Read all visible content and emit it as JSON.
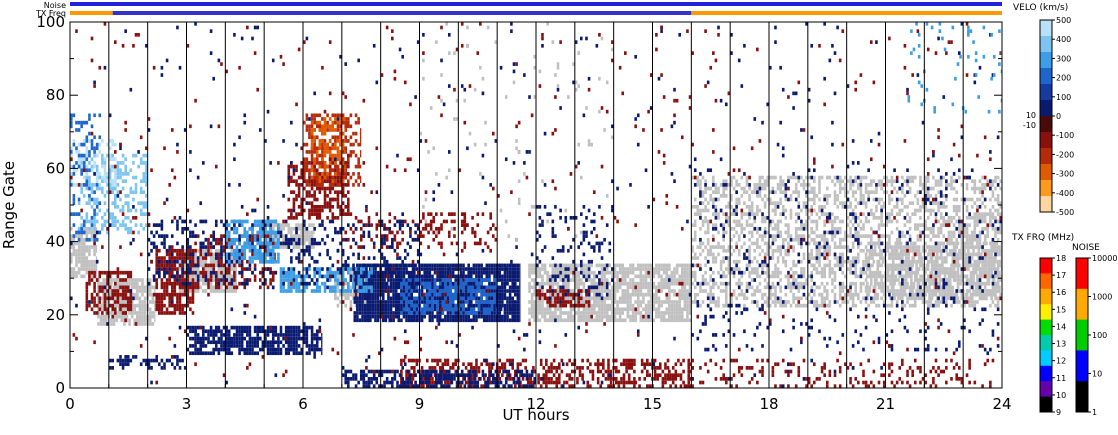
{
  "chart_data": {
    "type": "heatmap",
    "title": "",
    "xlabel": "UT hours",
    "ylabel": "Range Gate",
    "xlim": [
      0,
      24
    ],
    "ylim": [
      0,
      100
    ],
    "x_ticks": [
      0,
      3,
      6,
      9,
      12,
      15,
      18,
      21,
      24
    ],
    "y_ticks": [
      0,
      20,
      40,
      60,
      80,
      100
    ],
    "grid_vertical_hours": [
      1,
      2,
      3,
      4,
      5,
      6,
      7,
      8,
      9,
      10,
      11,
      12,
      13,
      14,
      15,
      16,
      17,
      18,
      19,
      20,
      21,
      22,
      23
    ],
    "status_bars": {
      "noise_label": "Noise",
      "txfreq_label": "TX Freq",
      "noise_color": "#2222dd",
      "txfreq_segments": [
        {
          "start": 0,
          "end": 1.1,
          "color": "#ff9900"
        },
        {
          "start": 1.1,
          "end": 16.0,
          "color": "#3333cc"
        },
        {
          "start": 16.0,
          "end": 24,
          "color": "#ff9900"
        }
      ]
    },
    "velocity_colorbar": {
      "title": "VELO (km/s)",
      "ticks": [
        "500",
        "400",
        "300",
        "200",
        "100",
        "0",
        "-100",
        "-200",
        "-300",
        "-400",
        "-500"
      ],
      "side_labels": [
        "10",
        "-10"
      ],
      "colors": [
        "#b8e0f8",
        "#7ec4f0",
        "#3b9ee6",
        "#1f66cc",
        "#163a9e",
        "#0a1a70",
        "#4a0a0a",
        "#8a1010",
        "#b52a0a",
        "#e05a00",
        "#ff9a20",
        "#ffd6a0"
      ]
    },
    "txfreq_colorbar": {
      "title": "TX FRQ (MHz)",
      "ticks": [
        "18",
        "17",
        "16",
        "15",
        "14",
        "13",
        "12",
        "11",
        "10",
        "9"
      ],
      "colors": [
        "#ff0000",
        "#ff6600",
        "#ffaa00",
        "#ffee00",
        "#00dd00",
        "#00ccaa",
        "#00ccff",
        "#0000ff",
        "#6600aa",
        "#000000"
      ]
    },
    "noise_colorbar": {
      "title": "NOISE",
      "ticks": [
        "10000",
        "1000",
        "100",
        "10",
        "1"
      ],
      "colors": [
        "#ff0000",
        "#ffaa00",
        "#00cc00",
        "#0000ff",
        "#000000"
      ]
    },
    "regions": [
      {
        "name": "ground-scatter",
        "color": "#c0c0c0",
        "hours": [
          0.0,
          0.7
        ],
        "gates": [
          30,
          44
        ],
        "density": 0.75
      },
      {
        "name": "ground-scatter",
        "color": "#c0c0c0",
        "hours": [
          0.7,
          2.2
        ],
        "gates": [
          17,
          30
        ],
        "density": 0.8
      },
      {
        "name": "ground-scatter",
        "color": "#c0c0c0",
        "hours": [
          2.8,
          4.3
        ],
        "gates": [
          26,
          38
        ],
        "density": 0.85
      },
      {
        "name": "ground-scatter",
        "color": "#c0c0c0",
        "hours": [
          5.0,
          6.3
        ],
        "gates": [
          38,
          45
        ],
        "density": 0.7
      },
      {
        "name": "ground-scatter",
        "color": "#c0c0c0",
        "hours": [
          6.8,
          7.8
        ],
        "gates": [
          22,
          32
        ],
        "density": 0.6
      },
      {
        "name": "ground-scatter",
        "color": "#c0c0c0",
        "hours": [
          11.8,
          16.0
        ],
        "gates": [
          18,
          34
        ],
        "density": 0.8
      },
      {
        "name": "ground-scatter",
        "color": "#c0c0c0",
        "hours": [
          16.0,
          24.0
        ],
        "gates": [
          22,
          58
        ],
        "density": 0.45
      },
      {
        "name": "ground-scatter",
        "color": "#c0c0c0",
        "hours": [
          20.5,
          24.0
        ],
        "gates": [
          24,
          40
        ],
        "density": 0.6
      },
      {
        "name": "receding-scatter",
        "color": "#8a1010",
        "hours": [
          0.4,
          1.6
        ],
        "gates": [
          20,
          32
        ],
        "density": 0.55
      },
      {
        "name": "receding-scatter",
        "color": "#8a1010",
        "hours": [
          2.2,
          3.2
        ],
        "gates": [
          20,
          38
        ],
        "density": 0.75
      },
      {
        "name": "receding-scatter",
        "color": "#8a1010",
        "hours": [
          3.2,
          5.3
        ],
        "gates": [
          27,
          42
        ],
        "density": 0.35
      },
      {
        "name": "receding-scatter",
        "color": "#8a1010",
        "hours": [
          5.6,
          7.2
        ],
        "gates": [
          46,
          62
        ],
        "density": 0.55
      },
      {
        "name": "receding-scatter",
        "color": "#b52a0a",
        "hours": [
          6.0,
          7.5
        ],
        "gates": [
          55,
          75
        ],
        "density": 0.45
      },
      {
        "name": "receding-scatter",
        "color": "#e05a00",
        "hours": [
          6.2,
          7.1
        ],
        "gates": [
          56,
          74
        ],
        "density": 0.4
      },
      {
        "name": "receding-scatter",
        "color": "#8a1010",
        "hours": [
          7.0,
          11.0
        ],
        "gates": [
          38,
          48
        ],
        "density": 0.25
      },
      {
        "name": "receding-scatter",
        "color": "#8a1010",
        "hours": [
          12.0,
          13.4
        ],
        "gates": [
          22,
          27
        ],
        "density": 0.5
      },
      {
        "name": "receding-scatter",
        "color": "#8a1010",
        "hours": [
          8.5,
          16.0
        ],
        "gates": [
          0,
          8
        ],
        "density": 0.45
      },
      {
        "name": "receding-scatter",
        "color": "#8a1010",
        "hours": [
          16.0,
          23.8
        ],
        "gates": [
          0,
          8
        ],
        "density": 0.18
      },
      {
        "name": "approaching-scatter",
        "color": "#0a1a70",
        "hours": [
          7.3,
          11.6
        ],
        "gates": [
          18,
          34
        ],
        "density": 0.9
      },
      {
        "name": "approaching-scatter",
        "color": "#1f66cc",
        "hours": [
          8.5,
          11.0
        ],
        "gates": [
          20,
          30
        ],
        "density": 0.6
      },
      {
        "name": "approaching-scatter",
        "color": "#3b9ee6",
        "hours": [
          5.4,
          7.8
        ],
        "gates": [
          26,
          33
        ],
        "density": 0.6
      },
      {
        "name": "approaching-scatter",
        "color": "#0a1a70",
        "hours": [
          3.0,
          6.5
        ],
        "gates": [
          9,
          17
        ],
        "density": 0.75
      },
      {
        "name": "approaching-scatter",
        "color": "#0a1a70",
        "hours": [
          1.0,
          3.0
        ],
        "gates": [
          5,
          9
        ],
        "density": 0.45
      },
      {
        "name": "approaching-scatter",
        "color": "#0a1a70",
        "hours": [
          2.0,
          9.0
        ],
        "gates": [
          28,
          46
        ],
        "density": 0.22
      },
      {
        "name": "approaching-scatter",
        "color": "#3b9ee6",
        "hours": [
          4.0,
          5.4
        ],
        "gates": [
          34,
          46
        ],
        "density": 0.55
      },
      {
        "name": "approaching-scatter",
        "color": "#7ec4f0",
        "hours": [
          0.2,
          2.0
        ],
        "gates": [
          42,
          64
        ],
        "density": 0.35
      },
      {
        "name": "approaching-scatter",
        "color": "#b8e0f8",
        "hours": [
          0.0,
          1.2
        ],
        "gates": [
          55,
          68
        ],
        "density": 0.35
      },
      {
        "name": "approaching-scatter",
        "color": "#1f66cc",
        "hours": [
          0.0,
          0.8
        ],
        "gates": [
          40,
          75
        ],
        "density": 0.2
      },
      {
        "name": "approaching-scatter",
        "color": "#0a1a70",
        "hours": [
          7.0,
          12.0
        ],
        "gates": [
          0,
          5
        ],
        "density": 0.55
      },
      {
        "name": "approaching-scatter",
        "color": "#0a1a70",
        "hours": [
          12.0,
          14.0
        ],
        "gates": [
          24,
          50
        ],
        "density": 0.18
      },
      {
        "name": "approaching-scatter",
        "color": "#0a1a70",
        "hours": [
          16.0,
          24.0
        ],
        "gates": [
          10,
          60
        ],
        "density": 0.05
      },
      {
        "name": "sparse-scatter",
        "color": "#0a1a70",
        "hours": [
          0.0,
          24.0
        ],
        "gates": [
          0,
          100
        ],
        "density": 0.012
      },
      {
        "name": "sparse-scatter",
        "color": "#8a1010",
        "hours": [
          0.0,
          24.0
        ],
        "gates": [
          0,
          100
        ],
        "density": 0.012
      },
      {
        "name": "sparse-scatter",
        "color": "#c0c0c0",
        "hours": [
          9.0,
          14.0
        ],
        "gates": [
          40,
          100
        ],
        "density": 0.02
      },
      {
        "name": "sparse-scatter",
        "color": "#3b9ee6",
        "hours": [
          21.5,
          24.0
        ],
        "gates": [
          75,
          100
        ],
        "density": 0.06
      }
    ]
  }
}
